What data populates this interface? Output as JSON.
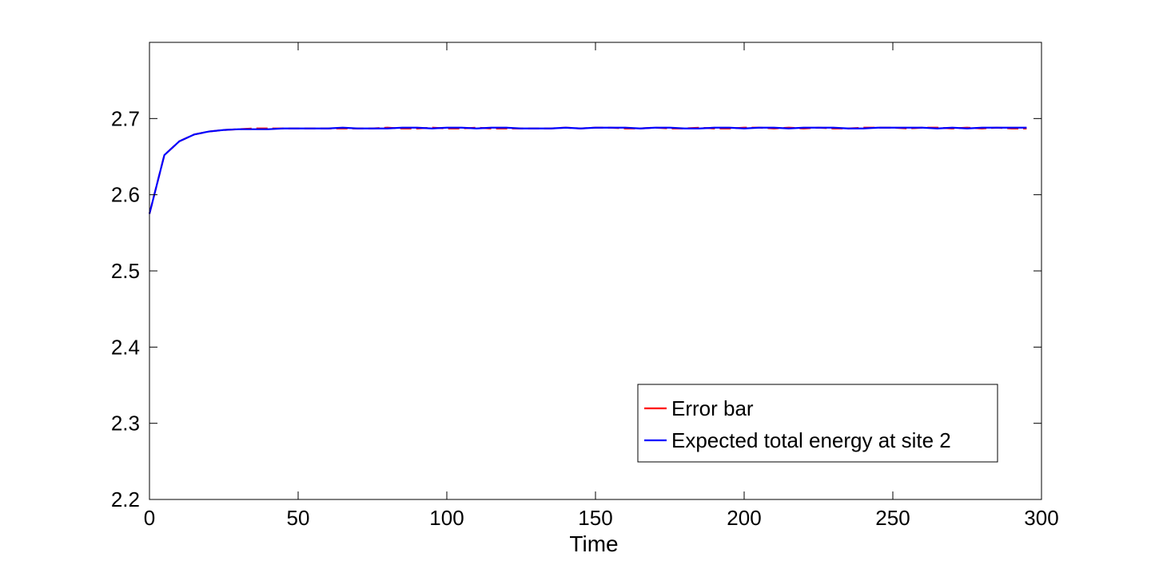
{
  "chart_data": {
    "type": "line",
    "title": "",
    "xlabel": "Time",
    "ylabel": "",
    "xlim": [
      0,
      300
    ],
    "ylim": [
      2.2,
      2.8
    ],
    "xticks": [
      0,
      50,
      100,
      150,
      200,
      250,
      300
    ],
    "xtick_labels": [
      "0",
      "50",
      "100",
      "150",
      "200",
      "250",
      "300"
    ],
    "yticks": [
      2.2,
      2.3,
      2.4,
      2.5,
      2.6,
      2.7
    ],
    "ytick_labels": [
      "2.2",
      "2.3",
      "2.4",
      "2.5",
      "2.6",
      "2.7"
    ],
    "grid": false,
    "legend_position": "bottom-right",
    "x": [
      0,
      5,
      10,
      15,
      20,
      25,
      30,
      35,
      40,
      45,
      50,
      55,
      60,
      65,
      70,
      75,
      80,
      85,
      90,
      95,
      100,
      105,
      110,
      115,
      120,
      125,
      130,
      135,
      140,
      145,
      150,
      155,
      160,
      165,
      170,
      175,
      180,
      185,
      190,
      195,
      200,
      205,
      210,
      215,
      220,
      225,
      230,
      235,
      240,
      245,
      250,
      255,
      260,
      265,
      270,
      275,
      280,
      285,
      290,
      295
    ],
    "series": [
      {
        "name": "Error bar",
        "color": "#ff0000",
        "values": [
          2.575,
          2.652,
          2.67,
          2.679,
          2.683,
          2.685,
          2.686,
          2.687,
          2.687,
          2.687,
          2.687,
          2.687,
          2.687,
          2.687,
          2.687,
          2.687,
          2.688,
          2.687,
          2.687,
          2.688,
          2.687,
          2.687,
          2.688,
          2.687,
          2.687,
          2.687,
          2.687,
          2.687,
          2.688,
          2.687,
          2.688,
          2.688,
          2.687,
          2.687,
          2.688,
          2.687,
          2.687,
          2.688,
          2.687,
          2.687,
          2.688,
          2.688,
          2.687,
          2.688,
          2.687,
          2.688,
          2.687,
          2.687,
          2.688,
          2.688,
          2.688,
          2.687,
          2.688,
          2.688,
          2.687,
          2.688,
          2.687,
          2.688,
          2.687,
          2.687
        ]
      },
      {
        "name": "Expected total energy at site 2",
        "color": "#0000ff",
        "values": [
          2.575,
          2.652,
          2.67,
          2.679,
          2.683,
          2.685,
          2.686,
          2.686,
          2.686,
          2.687,
          2.687,
          2.687,
          2.687,
          2.688,
          2.687,
          2.687,
          2.687,
          2.688,
          2.688,
          2.687,
          2.688,
          2.688,
          2.687,
          2.688,
          2.688,
          2.687,
          2.687,
          2.687,
          2.688,
          2.687,
          2.688,
          2.688,
          2.688,
          2.687,
          2.688,
          2.688,
          2.687,
          2.687,
          2.688,
          2.688,
          2.687,
          2.688,
          2.688,
          2.687,
          2.688,
          2.688,
          2.688,
          2.687,
          2.687,
          2.688,
          2.688,
          2.688,
          2.688,
          2.687,
          2.688,
          2.687,
          2.688,
          2.688,
          2.688,
          2.688
        ]
      }
    ]
  }
}
